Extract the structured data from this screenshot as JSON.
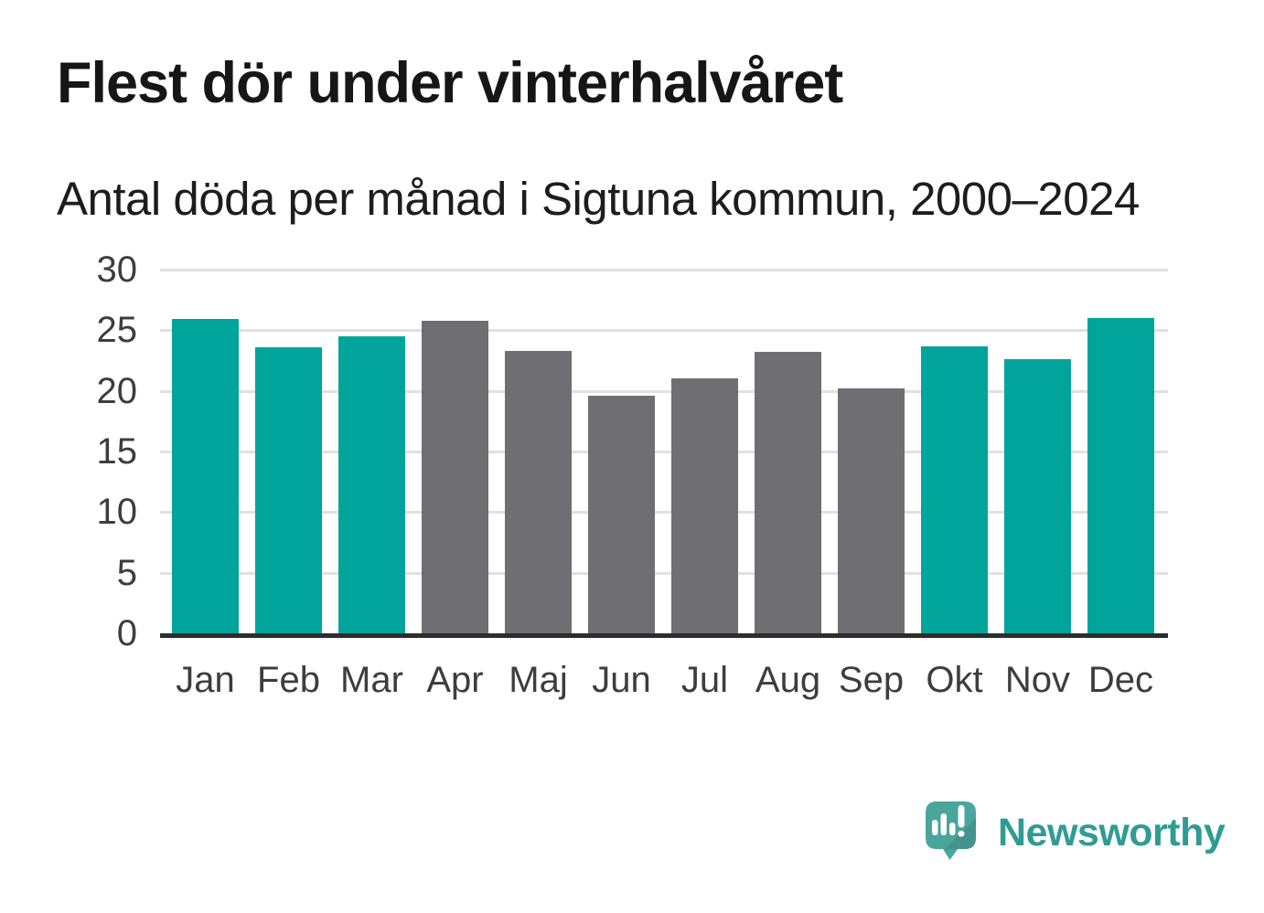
{
  "header": {
    "title": "Flest dör under vinterhalvåret",
    "subtitle": "Antal döda per månad i Sigtuna kommun, 2000–2024"
  },
  "chart_data": {
    "type": "bar",
    "title": "Flest dör under vinterhalvåret",
    "subtitle": "Antal döda per månad i Sigtuna kommun, 2000–2024",
    "categories": [
      "Jan",
      "Feb",
      "Mar",
      "Apr",
      "Maj",
      "Jun",
      "Jul",
      "Aug",
      "Sep",
      "Okt",
      "Nov",
      "Dec"
    ],
    "values": [
      25.9,
      23.6,
      24.5,
      25.8,
      23.3,
      19.6,
      21.0,
      23.2,
      20.2,
      23.7,
      22.6,
      26.0
    ],
    "bar_colors": [
      "teal",
      "teal",
      "teal",
      "gray",
      "gray",
      "gray",
      "gray",
      "gray",
      "gray",
      "teal",
      "teal",
      "teal"
    ],
    "colors": {
      "teal": "#00a49b",
      "gray": "#6e6e73",
      "grid": "#e1e1e1",
      "axis": "#2d2d2d",
      "tick_text": "#3d3d3d"
    },
    "xlabel": "",
    "ylabel": "",
    "ylim": [
      0,
      30
    ],
    "yticks": [
      0,
      5,
      10,
      15,
      20,
      25,
      30
    ],
    "grid": true,
    "legend": "none"
  },
  "branding": {
    "logo_text": "Newsworthy",
    "logo_text_color": "#2f9c94",
    "logo_mark_color": "#4aa59d"
  }
}
